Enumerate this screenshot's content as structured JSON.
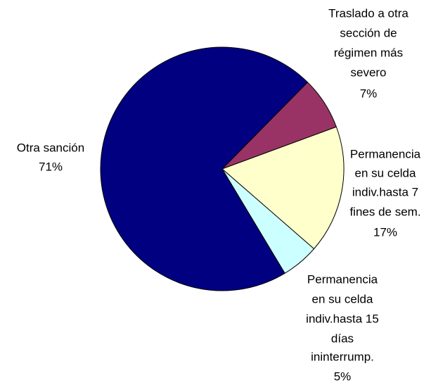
{
  "chart_data": {
    "type": "pie",
    "categories": [
      [
        "Traslado a otra",
        "sección de",
        "régimen más",
        "severo"
      ],
      [
        "Permanencia",
        "en su celda",
        "indiv.hasta 7",
        "fines de sem."
      ],
      [
        "Permanencia",
        "en su celda",
        "indiv.hasta 15",
        "días",
        "ininterrump."
      ],
      [
        "Otra sanción"
      ]
    ],
    "values": [
      7,
      17,
      5,
      71
    ],
    "value_labels": [
      "7%",
      "17%",
      "5%",
      "71%"
    ],
    "colors": [
      "#993366",
      "#ffffcc",
      "#ccffff",
      "#000080"
    ]
  }
}
